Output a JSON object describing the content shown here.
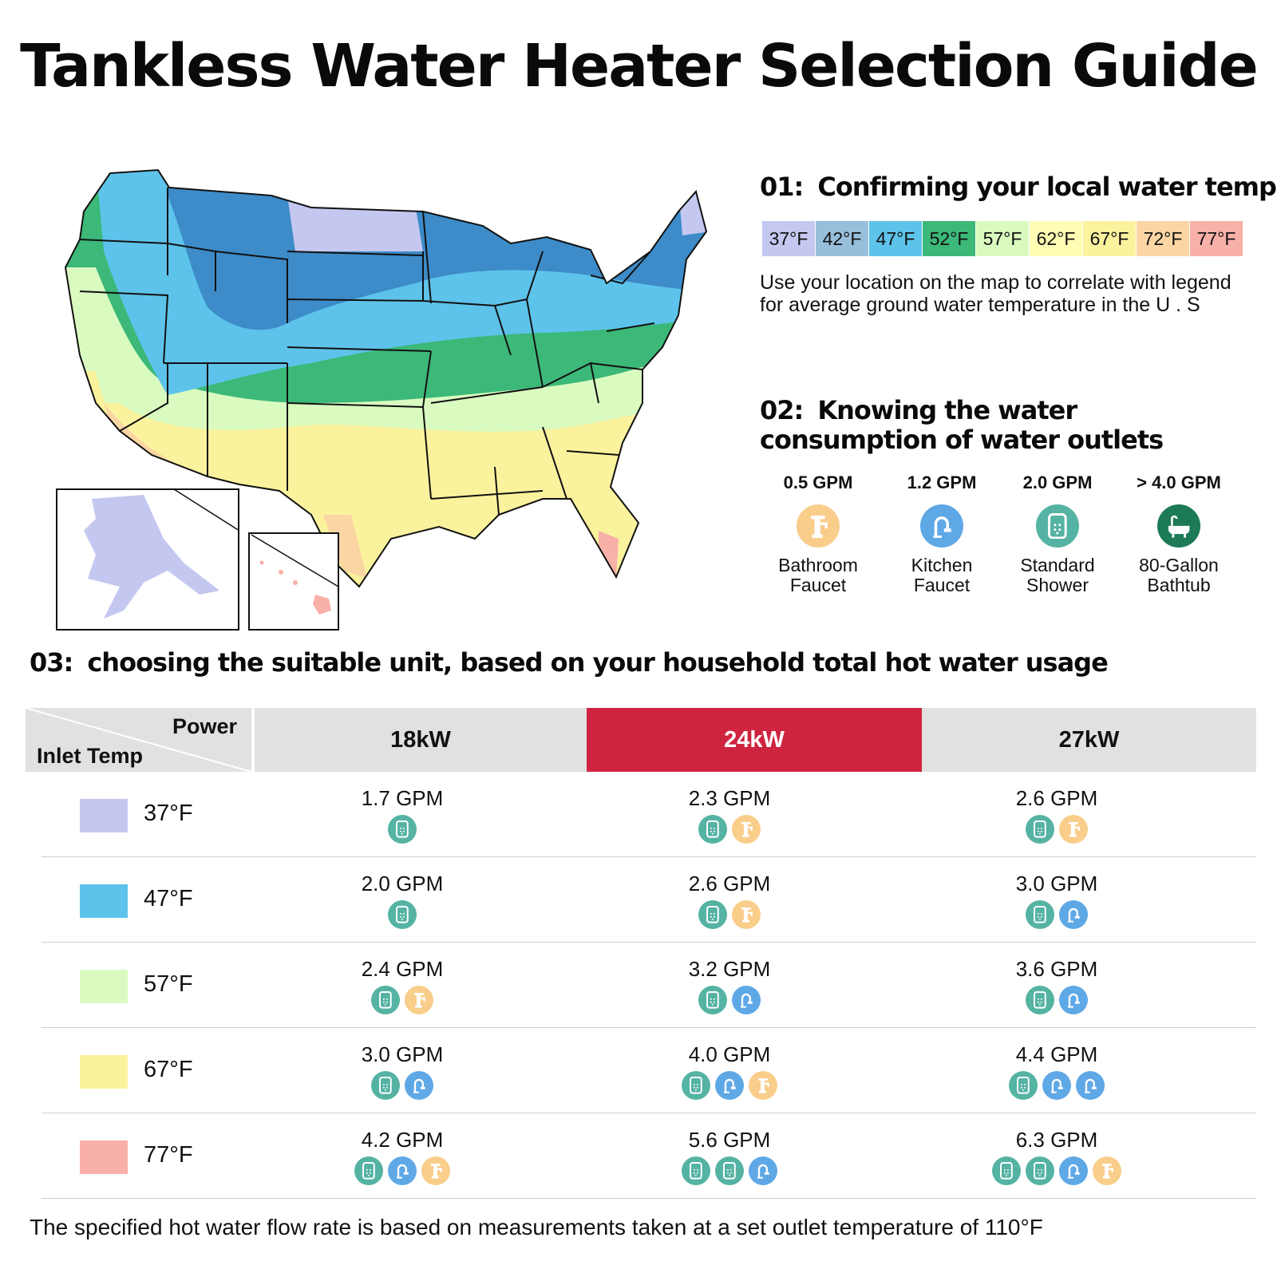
{
  "title": "Tankless Water Heater Selection Guide",
  "section1": {
    "num": "01:",
    "heading": "Confirming your local water temp",
    "legend": [
      {
        "label": "37°F",
        "color": "#c4c7f0"
      },
      {
        "label": "42°F",
        "color": "#97bfdc"
      },
      {
        "label": "47°F",
        "color": "#5dc3ea"
      },
      {
        "label": "52°F",
        "color": "#3cb878"
      },
      {
        "label": "57°F",
        "color": "#d9fbc0"
      },
      {
        "label": "62°F",
        "color": "#fffdb4"
      },
      {
        "label": "67°F",
        "color": "#fbf29e"
      },
      {
        "label": "72°F",
        "color": "#fbd6a4"
      },
      {
        "label": "77°F",
        "color": "#f9b0a8"
      }
    ],
    "description": "Use your location on the map to correlate with legend for average ground water temperature in the U . S"
  },
  "section2": {
    "num": "02:",
    "heading": "Knowing the water consumption of water outlets",
    "outlets": [
      {
        "gpm": "0.5 GPM",
        "name_line1": "Bathroom",
        "name_line2": "Faucet",
        "icon": "bathroom-faucet-icon",
        "color": "#f9cd8a"
      },
      {
        "gpm": "1.2 GPM",
        "name_line1": "Kitchen",
        "name_line2": "Faucet",
        "icon": "kitchen-faucet-icon",
        "color": "#5fa8e6"
      },
      {
        "gpm": "2.0 GPM",
        "name_line1": "Standard",
        "name_line2": "Shower",
        "icon": "shower-icon",
        "color": "#55b3a3"
      },
      {
        "gpm": "> 4.0 GPM",
        "name_line1": "80-Gallon",
        "name_line2": "Bathtub",
        "icon": "bathtub-icon",
        "color": "#1d7a57"
      }
    ]
  },
  "section3": {
    "num": "03:",
    "heading": "choosing the suitable unit, based on your household total hot water usage",
    "corner_power": "Power",
    "corner_inlet": "Inlet Temp",
    "columns": [
      "18kW",
      "24kW",
      "27kW"
    ],
    "highlight_column": "24kW",
    "highlight_color": "#cf2440",
    "rows": [
      {
        "temp": "37°F",
        "color": "#c4c7f0",
        "cells": [
          {
            "gpm": "1.7 GPM",
            "icons": [
              "shower"
            ]
          },
          {
            "gpm": "2.3 GPM",
            "icons": [
              "shower",
              "bathroom"
            ]
          },
          {
            "gpm": "2.6 GPM",
            "icons": [
              "shower",
              "bathroom"
            ]
          }
        ]
      },
      {
        "temp": "47°F",
        "color": "#5dc3ea",
        "cells": [
          {
            "gpm": "2.0 GPM",
            "icons": [
              "shower"
            ]
          },
          {
            "gpm": "2.6 GPM",
            "icons": [
              "shower",
              "bathroom"
            ]
          },
          {
            "gpm": "3.0 GPM",
            "icons": [
              "shower",
              "kitchen"
            ]
          }
        ]
      },
      {
        "temp": "57°F",
        "color": "#d9fbc0",
        "cells": [
          {
            "gpm": "2.4 GPM",
            "icons": [
              "shower",
              "bathroom"
            ]
          },
          {
            "gpm": "3.2 GPM",
            "icons": [
              "shower",
              "kitchen"
            ]
          },
          {
            "gpm": "3.6 GPM",
            "icons": [
              "shower",
              "kitchen"
            ]
          }
        ]
      },
      {
        "temp": "67°F",
        "color": "#fbf29e",
        "cells": [
          {
            "gpm": "3.0 GPM",
            "icons": [
              "shower",
              "kitchen"
            ]
          },
          {
            "gpm": "4.0 GPM",
            "icons": [
              "shower",
              "kitchen",
              "bathroom"
            ]
          },
          {
            "gpm": "4.4 GPM",
            "icons": [
              "shower",
              "kitchen",
              "kitchen"
            ]
          }
        ]
      },
      {
        "temp": "77°F",
        "color": "#f9b0a8",
        "cells": [
          {
            "gpm": "4.2 GPM",
            "icons": [
              "shower",
              "kitchen",
              "bathroom"
            ]
          },
          {
            "gpm": "5.6 GPM",
            "icons": [
              "shower",
              "shower",
              "kitchen"
            ]
          },
          {
            "gpm": "6.3 GPM",
            "icons": [
              "shower",
              "shower",
              "kitchen",
              "bathroom"
            ]
          }
        ]
      }
    ]
  },
  "footnote": "The specified hot water flow rate is based on measurements taken at a set outlet temperature of 110°F"
}
